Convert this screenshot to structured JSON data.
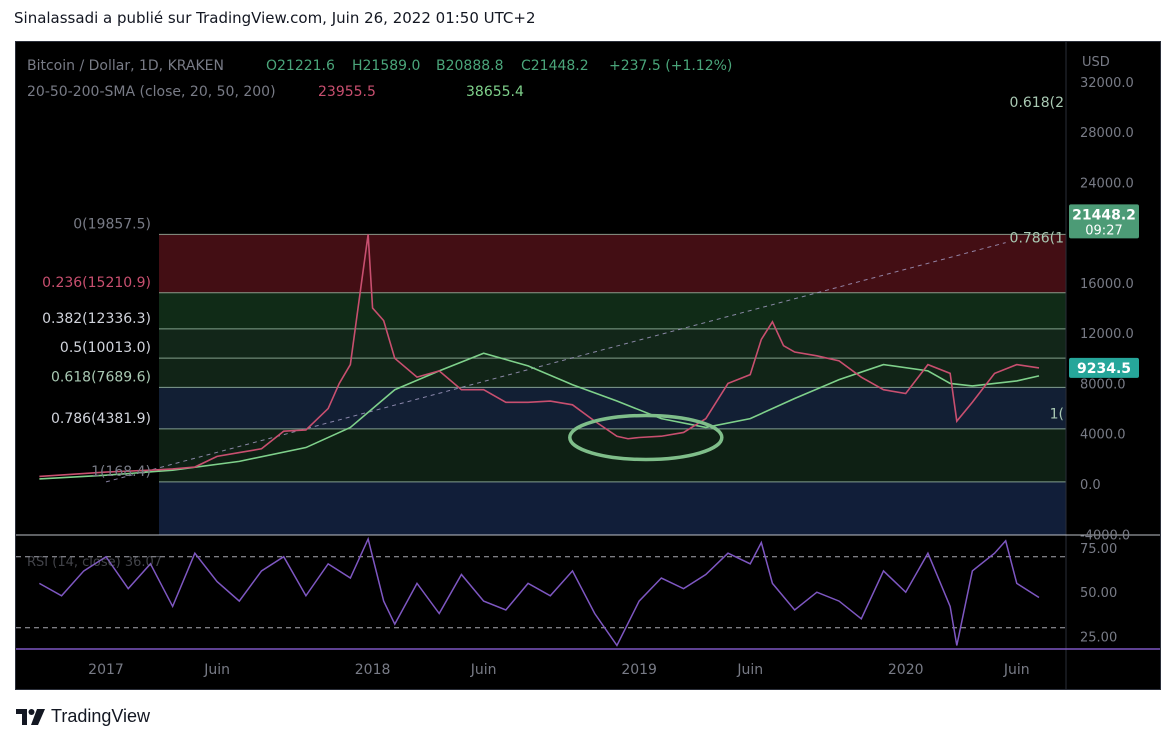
{
  "header": {
    "text": "Sinalassadi a publié sur TradingView.com, Juin 26, 2022 01:50 UTC+2"
  },
  "legend": {
    "symbol": "Bitcoin / Dollar, 1D, KRAKEN",
    "open": "O21221.6",
    "high": "H21589.0",
    "low": "B20888.8",
    "close": "C21448.2",
    "change": "+237.5 (+1.12%)",
    "sma_label": "20-50-200-SMA (close, 20, 50, 200)",
    "sma_value_1": "23955.5",
    "sma_value_2": "38655.4",
    "rsi_label": "RSI (14, close) 36.07"
  },
  "colors": {
    "background": "#000000",
    "candle": "#c84f6f",
    "sma_slow": "#7fd18b",
    "fib_line": "#a9c9b3",
    "rsi": "#7e57c2",
    "ellipse": "#7fbe8a",
    "last_price_badge": "#26a69a",
    "level_badge": "#4c9b76",
    "text_muted": "#787b86"
  },
  "footer": {
    "brand": "TradingView",
    "icon": "tradingview-logo-icon"
  },
  "chart_data": {
    "type": "line",
    "title": "Bitcoin / Dollar, 1D, KRAKEN",
    "currency_label": "USD",
    "ylim": [
      -4000,
      32000
    ],
    "y_ticks": [
      "32000.0",
      "28000.0",
      "24000.0",
      "16000.0",
      "12000.0",
      "8000.0",
      "4000.0",
      "0.0",
      "-4000.0"
    ],
    "x_ticks": [
      {
        "label": "2017",
        "t": 0.0
      },
      {
        "label": "Juin",
        "t": 5.0
      },
      {
        "label": "2018",
        "t": 12.0
      },
      {
        "label": "Juin",
        "t": 17.0
      },
      {
        "label": "2019",
        "t": 24.0
      },
      {
        "label": "Juin",
        "t": 29.0
      },
      {
        "label": "2020",
        "t": 36.0
      },
      {
        "label": "Juin",
        "t": 41.0
      }
    ],
    "x_axis_note": "t = months since January 2017 (axis prints only the labels above)",
    "price_series": {
      "name": "",
      "t": [
        -3,
        0,
        2,
        3,
        4,
        5,
        6,
        7,
        8,
        9,
        10,
        10.5,
        11,
        11.5,
        11.8,
        12,
        12.5,
        13,
        14,
        15,
        16,
        17,
        18,
        19,
        20,
        21,
        22,
        23,
        23.5,
        24,
        25,
        26,
        27,
        28,
        29,
        29.5,
        30,
        30.5,
        31,
        32,
        33,
        34,
        35,
        36,
        37,
        38,
        38.3,
        39,
        40,
        41,
        42
      ],
      "values": [
        600,
        950,
        1100,
        1200,
        1350,
        2200,
        2500,
        2800,
        4200,
        4300,
        6000,
        8000,
        9500,
        16000,
        19857,
        14000,
        13000,
        10000,
        8500,
        9000,
        7500,
        7500,
        6500,
        6500,
        6600,
        6300,
        5000,
        3800,
        3600,
        3700,
        3800,
        4100,
        5200,
        8000,
        8700,
        11500,
        12900,
        11000,
        10500,
        10200,
        9800,
        8500,
        7500,
        7200,
        9500,
        8800,
        5000,
        6500,
        8800,
        9500,
        9234.5
      ]
    },
    "sma_series": {
      "name": "",
      "t": [
        -3,
        0,
        3,
        6,
        9,
        11,
        13,
        15,
        17,
        19,
        21,
        23,
        25,
        27,
        29,
        31,
        33,
        35,
        37,
        38,
        39,
        40,
        41,
        42
      ],
      "values": [
        400,
        700,
        1100,
        1800,
        2900,
        4500,
        7500,
        9000,
        10400,
        9400,
        7900,
        6600,
        5200,
        4500,
        5200,
        6800,
        8300,
        9500,
        9000,
        8000,
        7800,
        8000,
        8200,
        8600
      ]
    },
    "fib_levels": [
      {
        "label": "0(19857.5)",
        "value": 19857.5
      },
      {
        "label": "0.236(15210.9)",
        "value": 15210.9
      },
      {
        "label": "0.382(12336.3)",
        "value": 12336.3
      },
      {
        "label": "0.5(10013.0)",
        "value": 10013.0
      },
      {
        "label": "0.618(7689.6)",
        "value": 7689.6
      },
      {
        "label": "0.786(4381.9)",
        "value": 4381.9
      },
      {
        "label": "1(168.4)",
        "value": 168.4
      }
    ],
    "fib_extension_labels": [
      {
        "label": "0.618(2",
        "value": 30000
      },
      {
        "label": "0.786(1",
        "value": 19200
      },
      {
        "label": "1(",
        "value": 5200
      }
    ],
    "price_badges": [
      {
        "label": "21448.2",
        "sublabel": "09:27",
        "value": 21448.2
      },
      {
        "label": "9234.5",
        "value": 9234.5
      }
    ],
    "trendline": {
      "t": [
        0,
        40.5
      ],
      "values": [
        168.4,
        19200
      ],
      "style": "dashed"
    },
    "annotation": {
      "type": "ellipse",
      "t_center": 24.3,
      "value_center": 3700
    },
    "rsi": {
      "name": "RSI (14, close) 36.07",
      "ylim": [
        18,
        80
      ],
      "ticks": [
        "75.00",
        "50.00",
        "25.00"
      ],
      "upper": 70,
      "lower": 30,
      "t": [
        -3,
        -2,
        -1,
        0,
        1,
        2,
        3,
        4,
        5,
        6,
        7,
        8,
        9,
        10,
        11,
        11.8,
        12.5,
        13,
        14,
        15,
        16,
        17,
        18,
        19,
        20,
        21,
        22,
        23,
        24,
        25,
        26,
        27,
        28,
        29,
        29.5,
        30,
        31,
        32,
        33,
        34,
        35,
        36,
        37,
        38,
        38.3,
        39,
        40,
        40.5,
        41,
        42
      ],
      "values": [
        55,
        48,
        62,
        70,
        52,
        66,
        42,
        72,
        56,
        45,
        62,
        70,
        48,
        66,
        58,
        80,
        45,
        32,
        55,
        38,
        60,
        45,
        40,
        55,
        48,
        62,
        38,
        20,
        45,
        58,
        52,
        60,
        72,
        66,
        78,
        55,
        40,
        50,
        45,
        35,
        62,
        50,
        72,
        42,
        20,
        62,
        72,
        79,
        55,
        47
      ]
    }
  }
}
